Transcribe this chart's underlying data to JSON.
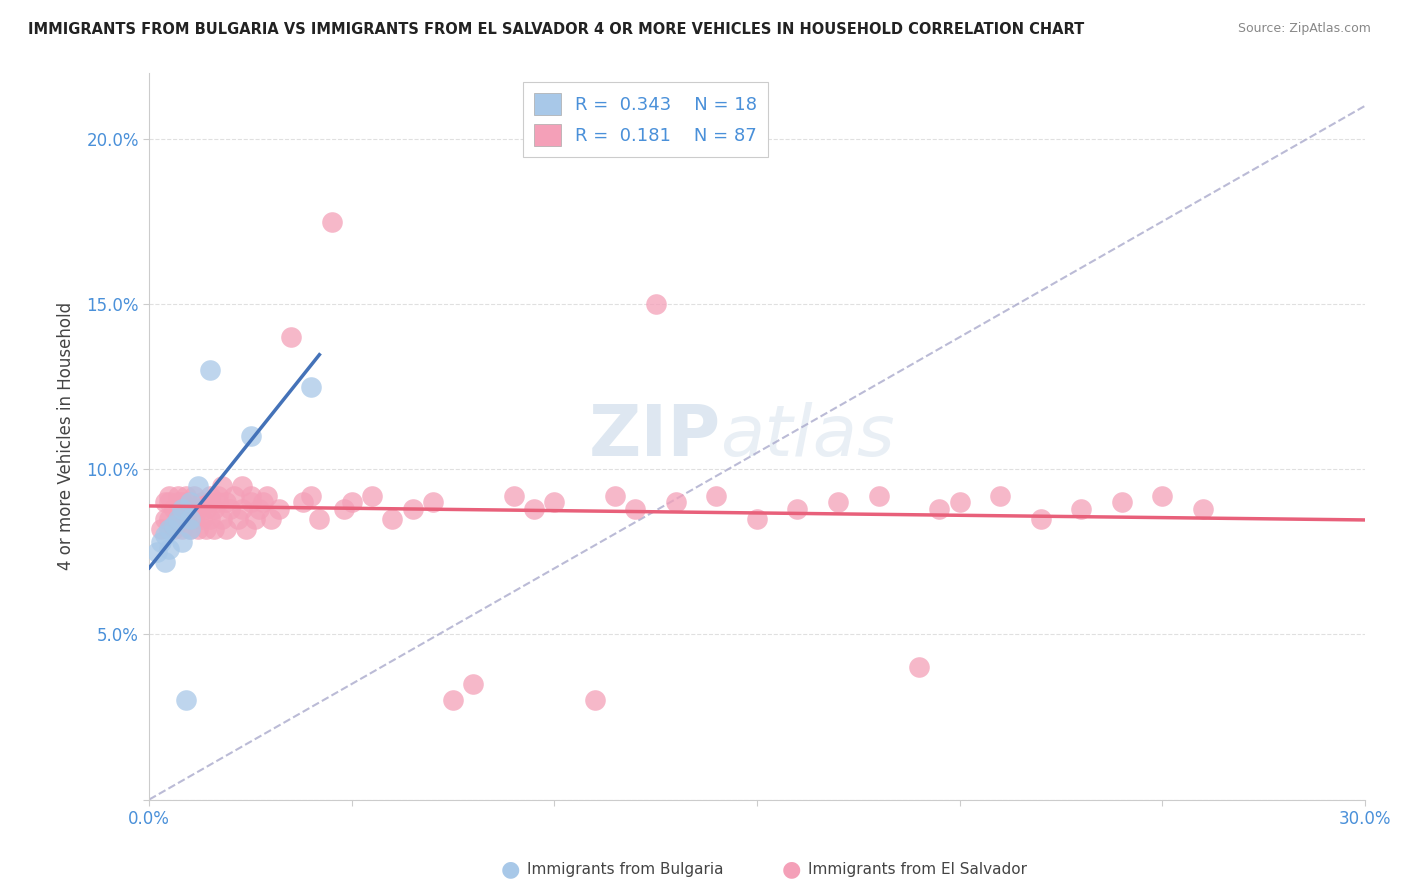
{
  "title": "IMMIGRANTS FROM BULGARIA VS IMMIGRANTS FROM EL SALVADOR 4 OR MORE VEHICLES IN HOUSEHOLD CORRELATION CHART",
  "source": "Source: ZipAtlas.com",
  "ylabel": "4 or more Vehicles in Household",
  "xlim": [
    0.0,
    0.3
  ],
  "ylim": [
    0.0,
    0.22
  ],
  "xticks": [
    0.0,
    0.05,
    0.1,
    0.15,
    0.2,
    0.25,
    0.3
  ],
  "xticklabels": [
    "0.0%",
    "",
    "",
    "",
    "",
    "",
    "30.0%"
  ],
  "yticks": [
    0.0,
    0.05,
    0.1,
    0.15,
    0.2
  ],
  "yticklabels": [
    "",
    "5.0%",
    "10.0%",
    "15.0%",
    "20.0%"
  ],
  "bulgaria_R": "0.343",
  "bulgaria_N": "18",
  "elsalvador_R": "0.181",
  "elsalvador_N": "87",
  "bulgaria_color": "#a8c8e8",
  "elsalvador_color": "#f4a0b8",
  "bulgaria_line_color": "#4472b8",
  "elsalvador_line_color": "#e8607a",
  "dashed_line_color": "#aaaacc",
  "bg_color": "#ffffff",
  "grid_color": "#dddddd",
  "watermark_color": "#c8d8e8",
  "tick_color": "#4a90d9",
  "bulgaria_x": [
    0.002,
    0.003,
    0.004,
    0.004,
    0.005,
    0.005,
    0.006,
    0.007,
    0.008,
    0.008,
    0.009,
    0.01,
    0.01,
    0.01,
    0.012,
    0.015,
    0.025,
    0.04
  ],
  "bulgaria_y": [
    0.075,
    0.078,
    0.072,
    0.08,
    0.082,
    0.076,
    0.083,
    0.085,
    0.088,
    0.078,
    0.03,
    0.085,
    0.09,
    0.082,
    0.095,
    0.13,
    0.11,
    0.125
  ],
  "elsalvador_x": [
    0.003,
    0.004,
    0.004,
    0.005,
    0.005,
    0.005,
    0.006,
    0.006,
    0.007,
    0.007,
    0.007,
    0.008,
    0.008,
    0.008,
    0.009,
    0.009,
    0.01,
    0.01,
    0.01,
    0.011,
    0.011,
    0.012,
    0.012,
    0.013,
    0.013,
    0.014,
    0.014,
    0.015,
    0.015,
    0.015,
    0.016,
    0.016,
    0.017,
    0.017,
    0.018,
    0.018,
    0.019,
    0.019,
    0.02,
    0.021,
    0.022,
    0.023,
    0.023,
    0.024,
    0.025,
    0.025,
    0.026,
    0.027,
    0.028,
    0.029,
    0.03,
    0.032,
    0.035,
    0.038,
    0.04,
    0.042,
    0.045,
    0.048,
    0.05,
    0.055,
    0.06,
    0.065,
    0.07,
    0.075,
    0.08,
    0.09,
    0.095,
    0.1,
    0.11,
    0.115,
    0.12,
    0.125,
    0.13,
    0.14,
    0.15,
    0.16,
    0.17,
    0.18,
    0.19,
    0.195,
    0.2,
    0.21,
    0.22,
    0.23,
    0.24,
    0.25,
    0.26
  ],
  "elsalvador_y": [
    0.082,
    0.085,
    0.09,
    0.085,
    0.09,
    0.092,
    0.082,
    0.088,
    0.085,
    0.09,
    0.092,
    0.082,
    0.088,
    0.09,
    0.085,
    0.092,
    0.082,
    0.088,
    0.09,
    0.085,
    0.092,
    0.082,
    0.088,
    0.085,
    0.09,
    0.082,
    0.088,
    0.085,
    0.09,
    0.092,
    0.082,
    0.088,
    0.09,
    0.092,
    0.085,
    0.095,
    0.082,
    0.09,
    0.088,
    0.092,
    0.085,
    0.088,
    0.095,
    0.082,
    0.09,
    0.092,
    0.085,
    0.088,
    0.09,
    0.092,
    0.085,
    0.088,
    0.14,
    0.09,
    0.092,
    0.085,
    0.175,
    0.088,
    0.09,
    0.092,
    0.085,
    0.088,
    0.09,
    0.03,
    0.035,
    0.092,
    0.088,
    0.09,
    0.03,
    0.092,
    0.088,
    0.15,
    0.09,
    0.092,
    0.085,
    0.088,
    0.09,
    0.092,
    0.04,
    0.088,
    0.09,
    0.092,
    0.085,
    0.088,
    0.09,
    0.092,
    0.088
  ]
}
